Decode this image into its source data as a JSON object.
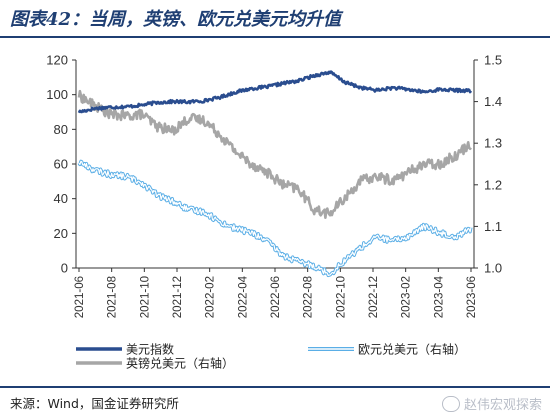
{
  "header": {
    "title": "图表42：当周，英镑、欧元兑美元均升值"
  },
  "source": {
    "text": "来源：Wind，国金证券研究所"
  },
  "watermark": {
    "text": "赵伟宏观探索",
    "icon": "wechat-icon"
  },
  "chart_data": {
    "type": "line",
    "left_axis": {
      "ylim": [
        0,
        120
      ],
      "ticks": [
        0,
        20,
        40,
        60,
        80,
        100,
        120
      ]
    },
    "right_axis": {
      "ylim": [
        1.0,
        1.5
      ],
      "ticks": [
        "1.0",
        "1.1",
        "1.2",
        "1.3",
        "1.4",
        "1.5"
      ]
    },
    "x_ticks": [
      "2021-06",
      "2021-08",
      "2021-10",
      "2021-12",
      "2022-02",
      "2022-04",
      "2022-06",
      "2022-08",
      "2022-10",
      "2022-12",
      "2023-02",
      "2023-04",
      "2023-06"
    ],
    "series": [
      {
        "name": "美元指数",
        "axis": "left",
        "color": "#2a4d8f",
        "dates": [
          "2021-06",
          "2021-07",
          "2021-08",
          "2021-09",
          "2021-10",
          "2021-11",
          "2021-12",
          "2022-01",
          "2022-02",
          "2022-03",
          "2022-04",
          "2022-05",
          "2022-06",
          "2022-07",
          "2022-08",
          "2022-09",
          "2022-10",
          "2022-11",
          "2022-12",
          "2023-01",
          "2023-02",
          "2023-03",
          "2023-04",
          "2023-05",
          "2023-06",
          "2023-06b"
        ],
        "values": [
          90.0,
          92.0,
          92.8,
          93.0,
          94.0,
          95.5,
          96.0,
          95.8,
          96.5,
          98.5,
          101.5,
          103.5,
          104.5,
          106.5,
          108.0,
          111.0,
          113.0,
          107.0,
          104.0,
          102.5,
          104.0,
          103.0,
          101.5,
          103.0,
          102.5,
          102.3
        ]
      },
      {
        "name": "英镑兑美元（右轴）",
        "axis": "right",
        "color": "#a6a6a6",
        "dates": [
          "2021-06",
          "2021-07",
          "2021-08",
          "2021-09",
          "2021-10",
          "2021-11",
          "2021-12",
          "2022-01",
          "2022-02",
          "2022-03",
          "2022-04",
          "2022-05",
          "2022-06",
          "2022-07",
          "2022-08",
          "2022-09",
          "2022-10",
          "2022-11",
          "2022-12",
          "2023-01",
          "2023-02",
          "2023-03",
          "2023-04",
          "2023-05",
          "2023-06",
          "2023-06b"
        ],
        "values": [
          1.415,
          1.39,
          1.37,
          1.365,
          1.37,
          1.34,
          1.33,
          1.36,
          1.355,
          1.32,
          1.28,
          1.25,
          1.23,
          1.2,
          1.19,
          1.14,
          1.13,
          1.17,
          1.21,
          1.22,
          1.21,
          1.23,
          1.25,
          1.25,
          1.27,
          1.3
        ]
      },
      {
        "name": "欧元兑美元（右轴）",
        "axis": "right",
        "color": "#5aaee6",
        "dates": [
          "2021-06",
          "2021-07",
          "2021-08",
          "2021-09",
          "2021-10",
          "2021-11",
          "2021-12",
          "2022-01",
          "2022-02",
          "2022-03",
          "2022-04",
          "2022-05",
          "2022-06",
          "2022-07",
          "2022-08",
          "2022-09",
          "2022-10",
          "2022-11",
          "2022-12",
          "2023-01",
          "2023-02",
          "2023-03",
          "2023-04",
          "2023-05",
          "2023-06",
          "2023-06b"
        ],
        "values": [
          1.255,
          1.235,
          1.225,
          1.22,
          1.205,
          1.175,
          1.16,
          1.14,
          1.135,
          1.11,
          1.095,
          1.085,
          1.065,
          1.03,
          1.015,
          1.005,
          0.985,
          1.02,
          1.05,
          1.075,
          1.065,
          1.075,
          1.1,
          1.085,
          1.075,
          1.095
        ]
      }
    ],
    "legend": {
      "placement": "bottom"
    },
    "grid": false
  }
}
